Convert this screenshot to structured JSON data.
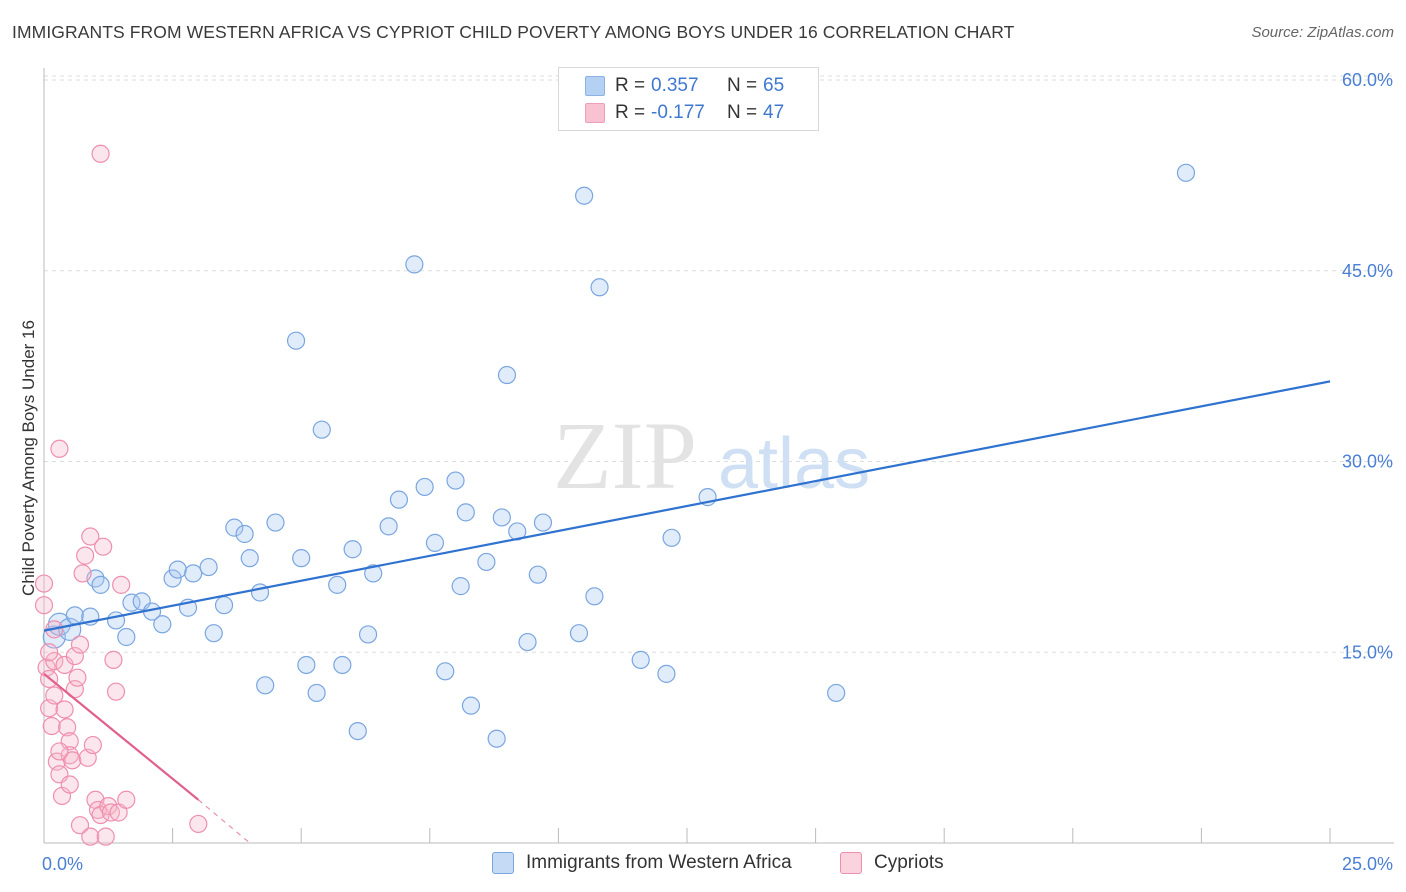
{
  "title": "IMMIGRANTS FROM WESTERN AFRICA VS CYPRIOT CHILD POVERTY AMONG BOYS UNDER 16 CORRELATION CHART",
  "source": "Source: ZipAtlas.com",
  "watermark": {
    "zip": "ZIP",
    "atlas": "atlas"
  },
  "legend": {
    "rows": [
      {
        "r_label": "R =",
        "r_value": "0.357",
        "n_label": "N =",
        "n_value": "65",
        "color": "#a8c8f0",
        "border": "#7aa6e0"
      },
      {
        "r_label": "R =",
        "r_value": "-0.177",
        "n_label": "N =",
        "n_value": "47",
        "color": "#f7b8cb",
        "border": "#ee8fae"
      }
    ]
  },
  "bottom_legend": [
    {
      "label": "Immigrants from Western Africa",
      "color": "#c5dbf5",
      "border": "#7aa6e0"
    },
    {
      "label": "Cypriots",
      "color": "#fbd3df",
      "border": "#ee8fae"
    }
  ],
  "chart_data": {
    "type": "scatter",
    "title": "IMMIGRANTS FROM WESTERN AFRICA VS CYPRIOT CHILD POVERTY AMONG BOYS UNDER 16 CORRELATION CHART",
    "xlabel": "",
    "ylabel": "Child Poverty Among Boys Under 16",
    "xlim": [
      0,
      25
    ],
    "ylim": [
      0,
      60
    ],
    "x_tick_labels": [
      {
        "value": 0,
        "label": "0.0%"
      },
      {
        "value": 25,
        "label": "25.0%"
      }
    ],
    "x_minor_ticks": [
      2.5,
      5,
      7.5,
      10,
      12.5,
      15,
      17.5,
      20,
      22.5,
      25
    ],
    "y_ticks": [
      {
        "value": 15,
        "label": "15.0%"
      },
      {
        "value": 30,
        "label": "30.0%"
      },
      {
        "value": 45,
        "label": "45.0%"
      },
      {
        "value": 60,
        "label": "60.0%"
      }
    ],
    "grid": true,
    "series": [
      {
        "name": "Immigrants from Western Africa",
        "color": "#7aa6e0",
        "fill": "rgba(168,200,240,0.35)",
        "trend": {
          "x0": 0,
          "y0": 16.7,
          "x1": 25,
          "y1": 36.3,
          "color": "#2f72d0"
        },
        "points": [
          [
            0.2,
            16.2
          ],
          [
            0.3,
            17.2
          ],
          [
            0.5,
            16.8
          ],
          [
            0.6,
            17.9
          ],
          [
            0.9,
            17.8
          ],
          [
            1.0,
            20.8
          ],
          [
            1.1,
            20.3
          ],
          [
            1.4,
            17.5
          ],
          [
            1.6,
            16.2
          ],
          [
            1.7,
            18.9
          ],
          [
            1.9,
            19.0
          ],
          [
            2.1,
            18.2
          ],
          [
            2.3,
            17.2
          ],
          [
            2.5,
            20.8
          ],
          [
            2.6,
            21.5
          ],
          [
            2.8,
            18.5
          ],
          [
            2.9,
            21.2
          ],
          [
            3.2,
            21.7
          ],
          [
            3.3,
            16.5
          ],
          [
            3.5,
            18.7
          ],
          [
            3.7,
            24.8
          ],
          [
            3.9,
            24.3
          ],
          [
            4.0,
            22.4
          ],
          [
            4.2,
            19.7
          ],
          [
            4.3,
            12.4
          ],
          [
            4.5,
            25.2
          ],
          [
            4.9,
            39.5
          ],
          [
            5.0,
            22.4
          ],
          [
            5.1,
            14.0
          ],
          [
            5.3,
            11.8
          ],
          [
            5.4,
            32.5
          ],
          [
            5.7,
            20.3
          ],
          [
            5.8,
            14.0
          ],
          [
            6.0,
            23.1
          ],
          [
            6.1,
            8.8
          ],
          [
            6.3,
            16.4
          ],
          [
            6.4,
            21.2
          ],
          [
            6.7,
            24.9
          ],
          [
            6.9,
            27.0
          ],
          [
            7.2,
            45.5
          ],
          [
            7.4,
            28.0
          ],
          [
            7.6,
            23.6
          ],
          [
            7.8,
            13.5
          ],
          [
            8.0,
            28.5
          ],
          [
            8.1,
            20.2
          ],
          [
            8.2,
            26.0
          ],
          [
            8.3,
            10.8
          ],
          [
            8.6,
            22.1
          ],
          [
            8.8,
            8.2
          ],
          [
            8.9,
            25.6
          ],
          [
            9.0,
            36.8
          ],
          [
            9.2,
            24.5
          ],
          [
            9.4,
            15.8
          ],
          [
            9.6,
            21.1
          ],
          [
            9.7,
            25.2
          ],
          [
            10.4,
            16.5
          ],
          [
            10.5,
            50.9
          ],
          [
            10.7,
            19.4
          ],
          [
            10.8,
            43.7
          ],
          [
            11.6,
            14.4
          ],
          [
            12.1,
            13.3
          ],
          [
            12.2,
            24.0
          ],
          [
            12.9,
            27.2
          ],
          [
            15.4,
            11.8
          ],
          [
            22.2,
            52.7
          ]
        ]
      },
      {
        "name": "Cypriots",
        "color": "#ee8fae",
        "fill": "rgba(247,184,203,0.35)",
        "trend": {
          "x0": 0,
          "y0": 13.3,
          "x1": 3.0,
          "y1": 3.4,
          "color": "#e0608e",
          "dash_to_x": 4.0,
          "dash_to_y": 0.0
        },
        "points": [
          [
            0.0,
            20.4
          ],
          [
            0.0,
            18.7
          ],
          [
            0.05,
            13.8
          ],
          [
            0.1,
            12.9
          ],
          [
            0.1,
            10.6
          ],
          [
            0.15,
            9.2
          ],
          [
            0.2,
            14.3
          ],
          [
            0.2,
            11.6
          ],
          [
            0.25,
            6.4
          ],
          [
            0.3,
            5.4
          ],
          [
            0.3,
            31.0
          ],
          [
            0.35,
            3.7
          ],
          [
            0.4,
            14.0
          ],
          [
            0.4,
            10.5
          ],
          [
            0.45,
            9.1
          ],
          [
            0.5,
            8.0
          ],
          [
            0.5,
            6.9
          ],
          [
            0.55,
            6.5
          ],
          [
            0.6,
            14.7
          ],
          [
            0.6,
            12.1
          ],
          [
            0.65,
            13.0
          ],
          [
            0.7,
            15.6
          ],
          [
            0.7,
            1.4
          ],
          [
            0.75,
            21.2
          ],
          [
            0.8,
            22.6
          ],
          [
            0.85,
            6.7
          ],
          [
            0.9,
            24.1
          ],
          [
            0.9,
            0.5
          ],
          [
            0.95,
            7.7
          ],
          [
            1.0,
            3.4
          ],
          [
            1.05,
            2.6
          ],
          [
            1.1,
            54.2
          ],
          [
            1.1,
            2.2
          ],
          [
            1.15,
            23.3
          ],
          [
            1.2,
            0.5
          ],
          [
            1.25,
            2.9
          ],
          [
            1.3,
            2.4
          ],
          [
            1.35,
            14.4
          ],
          [
            1.4,
            11.9
          ],
          [
            1.45,
            2.4
          ],
          [
            1.5,
            20.3
          ],
          [
            1.6,
            3.4
          ],
          [
            3.0,
            1.5
          ],
          [
            0.1,
            15.0
          ],
          [
            0.2,
            16.8
          ],
          [
            0.3,
            7.2
          ],
          [
            0.5,
            4.6
          ]
        ]
      }
    ]
  }
}
